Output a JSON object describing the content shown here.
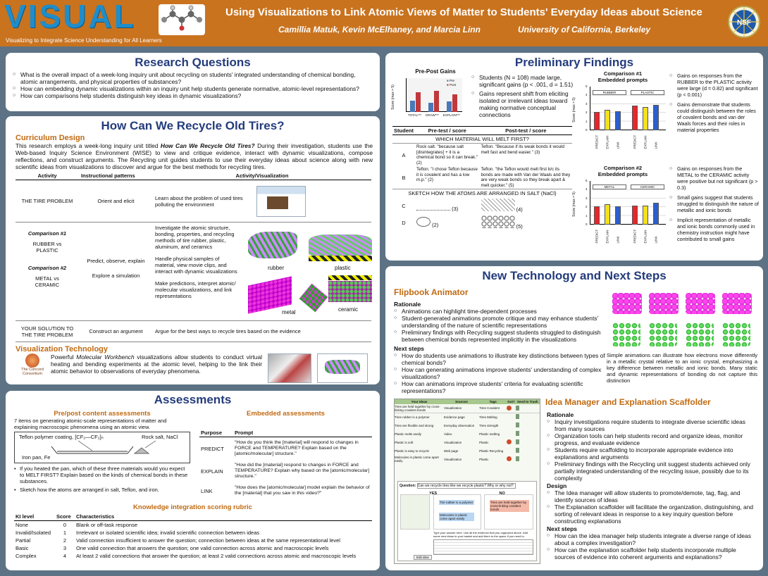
{
  "header": {
    "logo": "VISUAL",
    "tagline": "Visualizing to Integrate Science Understanding for All Learners",
    "title": "Using Visualizations to Link Atomic Views of Matter to Students' Everyday Ideas about Science",
    "authors": "Camillia Matuk, Kevin McElhaney, and Marcia Linn",
    "affiliation": "University of California, Berkeley",
    "nsf": "NSF"
  },
  "rq": {
    "title": "Research Questions",
    "items": [
      "What is the overall impact of a week-long inquiry unit about recycling on students' integrated understanding of chemical bonding, atomic arrangements, and physical properties of substances?",
      "How can embedding dynamic visualizations within an inquiry unit help students generate normative, atomic-level representations?",
      "How can comparisons help students distinguish key ideas in dynamic visualizations?"
    ]
  },
  "tires": {
    "title": "How Can We Recycle Old Tires?",
    "curriculum_head": "Curriculum Design",
    "intro_a": "This research employs a week-long inquiry unit titled ",
    "intro_title": "How Can We Recycle Old Tires?",
    "intro_b": " During their investigation, students use the Web-based Inquiry Science Environment (WISE) to view and critique evidence, interact with dynamic visualizations, compose reflections, and construct arguments. The Recycling unit guides students to use their everyday ideas about science along with new scientific ideas from visualizations to discover and argue for the best methods for recycling tires.",
    "cols": [
      "Activity",
      "Instructional patterns",
      "Activity/Visualization"
    ],
    "r1": {
      "act": "THE TIRE PROBLEM",
      "pat": "Orient and elicit",
      "desc": "Learn about the problem of used tires polluting the environment"
    },
    "r2": {
      "c1": "Comparison #1",
      "a1": "RUBBER vs PLASTIC",
      "c2": "Comparison #2",
      "a2": "METAL vs CERAMIC",
      "p1": "Predict, observe, explain",
      "p2": "Explore a simulation",
      "d1": "Investigate the atomic structure, bonding, properties, and recycling methods of tire rubber, plastic, aluminum, and ceramics",
      "d2": "Handle physical samples of material, view movie clips, and interact with dynamic visualizations",
      "d3": "Make predictions, interpret atomic/ molecular visualizations, and link representations",
      "m1": "rubber",
      "m2": "plastic",
      "m3": "metal",
      "m4": "ceramic"
    },
    "r3": {
      "act": "YOUR SOLUTION TO THE TIRE PROBLEM",
      "pat": "Construct an argument",
      "desc": "Argue for the best ways to recycle tires based on the evidence"
    },
    "vt_head": "Visualization Technology",
    "vt_a": "Powerful ",
    "vt_title": "Molecular Workbench",
    "vt_b": " visualizations allow students to conduct virtual heating and bending experiments at the atomic level, helping to the link their atomic behavior to observations of everyday phenomena.",
    "concord": "The Concord Consortium"
  },
  "assess": {
    "title": "Assessments",
    "prepost_head": "Pre/post content assessments",
    "prepost_text": "7 items on generating atomic-scale representations of matter and explaining macroscopic phenomena using an atomic view.",
    "fig_teflon": "Teflon polymer coating, [CF₂—CF₂]ₙ",
    "fig_salt": "Rock salt, NaCl",
    "fig_iron": "Iron pan, Fe",
    "bullets": [
      "If you heated the pan, which of these three materials would you expect to MELT FIRST? Explain based on the kinds of chemical bonds in these substances.",
      "Sketch how the atoms are arranged in salt, Teflon, and iron."
    ],
    "embedded_head": "Embedded assessments",
    "ecols": [
      "Purpose",
      "Prompt"
    ],
    "prompts": [
      {
        "p": "PREDICT",
        "t": "\"How do you think the [material] will respond to changes in FORCE and TEMPERATURE? Explain based on the [atomic/molecular] structure.\""
      },
      {
        "p": "EXPLAIN",
        "t": "\"How did the [material] respond to changes in FORCE and TEMPERATURE? Explain why based on the [atomic/molecular] structure.\""
      },
      {
        "p": "LINK",
        "t": "\"How does the [atomic/molecular] model explain the behavior of the [material] that you saw in this video?\""
      }
    ],
    "rubric_head": "Knowledge integration scoring rubric",
    "rcols": [
      "KI level",
      "Score",
      "Characteristics"
    ],
    "rubric": [
      {
        "l": "None",
        "s": "0",
        "c": "Blank or off-task response"
      },
      {
        "l": "Invalid/Isolated",
        "s": "1",
        "c": "Irrelevant or isolated scientific idea; invalid scientific connection between ideas"
      },
      {
        "l": "Partial",
        "s": "2",
        "c": "Valid connection insufficient to answer the question; connection between ideas at the same representational level"
      },
      {
        "l": "Basic",
        "s": "3",
        "c": "One valid connection that answers the question; one valid connection across atomic and macroscopic levels"
      },
      {
        "l": "Complex",
        "s": "4",
        "c": "At least 2 valid connections that answer the question; at least 2 valid connections across atomic and macroscopic levels"
      }
    ]
  },
  "findings": {
    "title": "Preliminary Findings",
    "ppg_title": "Pre-Post Gains",
    "ppg_ylabel": "Score (max = 5)",
    "ppg_x": [
      "TOTAL***",
      "DRAW***",
      "EXPLAIN***"
    ],
    "ppg_legend": [
      "Pre",
      "Post"
    ],
    "gain_bullets": [
      "Students (N = 108) made large, significant gains (p < .001, d = 1.51)",
      "Gains represent shift from eliciting isolated or irrelevant ideas toward making normative conceptual connections"
    ],
    "scols": [
      "Student",
      "Pre-test / score",
      "Post-test / score"
    ],
    "melt_q": "WHICH MATERIAL WILL MELT FIRST?",
    "rows": [
      {
        "s": "A",
        "pre": "Rock salt. \"because salt [disintegrates] + it is a chemical bond so it can break.\"",
        "ps": "(2)",
        "post": "Teflon. \"Because if its weak bonds it would melt fast and bend easier.\"",
        "qs": "(3)"
      },
      {
        "s": "B",
        "pre": "Teflon. \"I chose Teflon because it is covalent and has a low m.p.\"",
        "ps": "(2)",
        "post": "Teflon. \"the Teflon would melt first b/c its bonds are made with Van der Waals and they are very weak bonds so they break apart & melt quicker.\"",
        "qs": "(5)"
      }
    ],
    "sketch_q": "SKETCH HOW THE ATOMS ARE ARRANGED IN SALT (NaCl)",
    "srows": [
      {
        "s": "C",
        "ps": "(3)",
        "qs": "(4)"
      },
      {
        "s": "D",
        "ps": "(2)",
        "qs": "(5)"
      }
    ],
    "c1": {
      "title": "Comparison #1",
      "subtitle": "Embedded prompts",
      "ylabel": "Score (max = 5)",
      "left": "RUBBER",
      "right": "PLASTIC",
      "cats": [
        "PREDICT",
        "EXPLAIN",
        "LINK"
      ]
    },
    "c2": {
      "title": "Comparison #2",
      "subtitle": "Embedded prompts",
      "ylabel": "Score (max = 5)",
      "left": "METAL",
      "right": "CERAMIC",
      "cats": [
        "PREDICT",
        "EXPLAIN",
        "LINK"
      ]
    },
    "side1": [
      "Gains on responses from the RUBBER to the PLASTIC activity were large (d = 0.82) and significant (p < 0.001)",
      "Gains demonstrate that students could distinguish between the roles of covalent bonds and van der Waals forces and their roles in material properties"
    ],
    "side2": [
      "Gains on responses from the METAL to the CERAMIC activity were positive but not significant (p > 0.3)",
      "Small gains suggest that students struggled to distinguish the nature of metallic and ionic bonds",
      "Implicit representation of metallic and ionic bonds commonly used in chemistry instruction might have contributed to small gains"
    ]
  },
  "tech": {
    "title": "New Technology and Next Steps",
    "flip_head": "Flipbook Animator",
    "rationale": "Rationale",
    "flip_rat": [
      "Animations can highlight time-dependent processes",
      "Student-generated animations promote critique and may enhance students' understanding of the nature of scientific representations",
      "Preliminary findings with Recycling suggest students struggled to distinguish between chemical bonds represented implicitly in the visualizations"
    ],
    "next": "Next steps",
    "flip_next": [
      "How do students use animations to illustrate key distinctions between types of chemical bonds?",
      "How can generating animations improve students' understanding of complex visualizations?",
      "How can animations improve students' criteria for evaluating scientific representations?"
    ],
    "flip_caption": "Simple animations can illustrate how electrons move differently in a metallic crystal relative to an ionic crystal, emphasizing a key difference between metallic and ionic bonds. Many static and dynamic representations of bonding do not capture this distinction",
    "idea_head": "Idea Manager and Explanation Scaffolder",
    "idea_rat": [
      "Inquiry investigations require students to integrate diverse scientific ideas from many sources",
      "Organization tools can help students record and organize ideas, monitor progress, and evaluate evidence",
      "Students require scaffolding to incorporate appropriate evidence into explanations and arguments",
      "Preliminary findings with the Recycling unit suggest students achieved only partially integrated understanding of the recycling issue, possibly due to its complexity"
    ],
    "design": "Design",
    "idea_design": [
      "The Idea manager will allow students to promote/demote, tag, flag, and identify sources of ideas",
      "The Explanation scaffolder will facilitate the organization, distinguishing, and sorting of relevant ideas in response to a key inquiry question before constructing explanations"
    ],
    "idea_next": [
      "How can the idea manager help students integrate a diverse range of ideas about a complex investigation?",
      "How can the explanation scaffolder help students incorporate multiple sources of evidence into coherent arguments and explanations?"
    ],
    "im_cols": [
      "Your Ideas",
      "Sources",
      "Tags",
      "Got?",
      "Send to Trash"
    ],
    "im_rows": [
      {
        "i": "Tires are held together by cross-linking covalent bonds",
        "s": "Visualization",
        "t": "Tires Covalent"
      },
      {
        "i": "Tires rubber is a polymer",
        "s": "Evidence page",
        "t": "Tires Melting"
      },
      {
        "i": "Tires are flexible and strong",
        "s": "Everyday observation",
        "t": "Tires strength"
      },
      {
        "i": "Plastic melts easily",
        "s": "Video",
        "t": "Plastic melting"
      },
      {
        "i": "Plastic is soft",
        "s": "Visualization",
        "t": "Plastic"
      },
      {
        "i": "Plastic is easy to recycle",
        "s": "Web page",
        "t": "Plastic Recycling"
      },
      {
        "i": "Molecules in plastic come apart easily",
        "s": "Visualization",
        "t": "Plastic"
      }
    ],
    "es_question_label": "Question:",
    "es_question": "Can we recycle tires like we recycle plastic? Why or why not?",
    "es_yes": "YES",
    "es_no": "NO",
    "es_note1": "Tire rubber is a polymer",
    "es_note2": "Molecules in plastic come apart easily",
    "es_note3": "Tires are held together by cross-linking covalent bonds",
    "es_prompt": "Type your answer here. Use all the evidence that you organized above. Add some new ideas to your basket and add them to the space if you need to.",
    "es_btn": "Edit idea"
  }
}
